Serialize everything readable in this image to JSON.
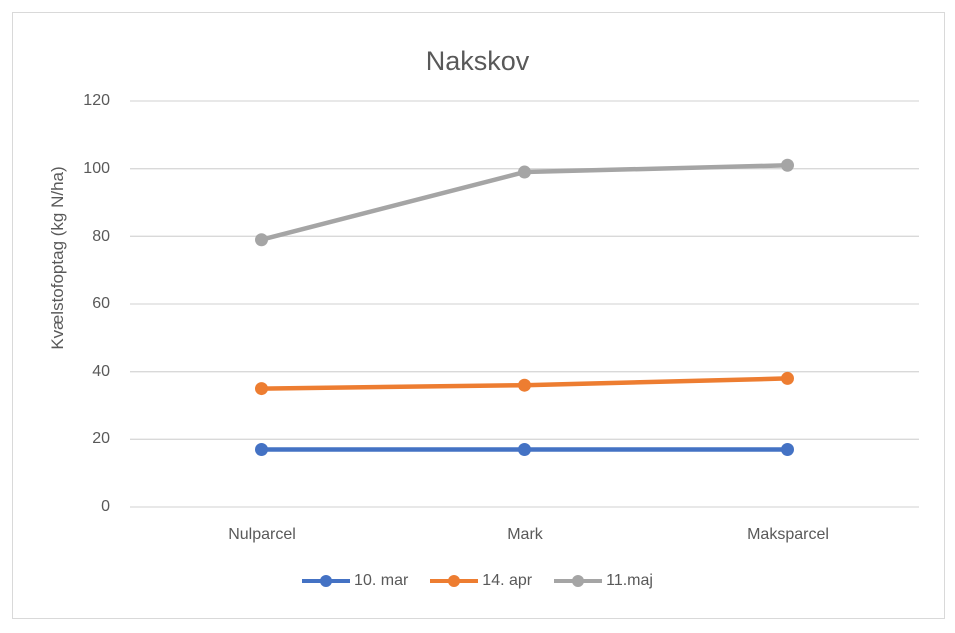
{
  "chart_data": {
    "type": "line",
    "title": "Nakskov",
    "xlabel": "",
    "ylabel": "Kvælstofoptag (kg N/ha)",
    "categories": [
      "Nulparcel",
      "Mark",
      "Maksparcel"
    ],
    "ylim": [
      0,
      120
    ],
    "yticks": [
      0,
      20,
      40,
      60,
      80,
      100,
      120
    ],
    "grid": true,
    "legend_position": "bottom",
    "series": [
      {
        "name": "10. mar",
        "color": "#4472C4",
        "values": [
          17,
          17,
          17
        ]
      },
      {
        "name": "14. apr",
        "color": "#ED7D31",
        "values": [
          35,
          36,
          38
        ]
      },
      {
        "name": "11.maj",
        "color": "#A5A5A5",
        "values": [
          79,
          99,
          101
        ]
      }
    ]
  },
  "yticks_labels": [
    "0",
    "20",
    "40",
    "60",
    "80",
    "100",
    "120"
  ]
}
